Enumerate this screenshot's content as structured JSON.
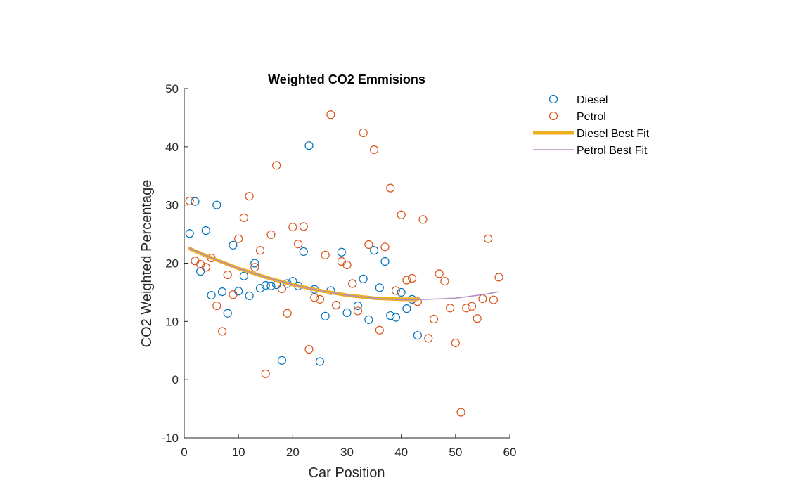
{
  "chart_data": {
    "type": "scatter",
    "title": "Weighted CO2 Emmisions",
    "xlabel": "Car Position",
    "ylabel": "CO2 Weighted Percentage",
    "xlim": [
      0,
      60
    ],
    "ylim": [
      -10,
      50
    ],
    "xticks": [
      0,
      10,
      20,
      30,
      40,
      50,
      60
    ],
    "yticks": [
      -10,
      0,
      10,
      20,
      30,
      40,
      50
    ],
    "grid": false,
    "legend_position": "outside-top-right",
    "series": [
      {
        "name": "Diesel",
        "kind": "markers",
        "color": "#0072BD",
        "x": [
          1,
          2,
          3,
          4,
          5,
          6,
          7,
          8,
          9,
          10,
          11,
          12,
          13,
          14,
          15,
          16,
          17,
          18,
          19,
          20,
          21,
          22,
          23,
          24,
          25,
          26,
          27,
          28,
          29,
          30,
          31,
          32,
          33,
          34,
          35,
          36,
          37,
          38,
          39,
          40,
          41,
          42,
          43
        ],
        "y": [
          25.1,
          30.6,
          18.6,
          25.6,
          14.5,
          30.0,
          15.1,
          11.4,
          23.1,
          15.2,
          17.8,
          14.4,
          20.0,
          15.7,
          16.2,
          16.1,
          16.3,
          3.3,
          16.5,
          16.9,
          16.1,
          22.0,
          40.2,
          15.5,
          3.1,
          10.9,
          15.3,
          12.8,
          21.9,
          11.5,
          16.5,
          12.7,
          17.3,
          10.3,
          22.2,
          15.8,
          20.3,
          11.0,
          10.7,
          15.0,
          12.2,
          13.8,
          7.6
        ]
      },
      {
        "name": "Petrol",
        "kind": "markers",
        "color": "#D95319",
        "x": [
          1,
          2,
          3,
          4,
          5,
          6,
          7,
          8,
          9,
          10,
          11,
          12,
          13,
          14,
          15,
          16,
          17,
          18,
          19,
          20,
          21,
          22,
          23,
          24,
          25,
          26,
          27,
          28,
          29,
          30,
          31,
          32,
          33,
          34,
          35,
          36,
          37,
          38,
          39,
          40,
          41,
          42,
          43,
          44,
          45,
          46,
          47,
          48,
          49,
          50,
          51,
          52,
          53,
          54,
          55,
          56,
          57,
          58
        ],
        "y": [
          30.7,
          20.4,
          19.8,
          19.3,
          20.9,
          12.7,
          8.3,
          18.0,
          14.6,
          24.2,
          27.8,
          31.5,
          19.3,
          22.2,
          1.0,
          24.9,
          36.8,
          15.6,
          11.4,
          26.2,
          23.3,
          26.3,
          5.2,
          14.1,
          13.8,
          21.4,
          45.5,
          12.8,
          20.3,
          19.7,
          16.5,
          11.8,
          42.4,
          23.2,
          39.5,
          8.5,
          22.8,
          32.9,
          15.3,
          28.3,
          17.1,
          17.4,
          13.4,
          27.5,
          7.1,
          10.4,
          18.2,
          16.9,
          12.3,
          6.3,
          -5.6,
          12.3,
          12.6,
          10.5,
          13.9,
          24.2,
          13.7,
          17.6
        ]
      },
      {
        "name": "Diesel Best Fit",
        "kind": "line",
        "color": "#EDB120",
        "x": [
          1,
          5,
          10,
          15,
          20,
          25,
          30,
          35,
          40,
          43
        ],
        "y": [
          22.5,
          20.9,
          19.1,
          17.6,
          16.3,
          15.3,
          14.5,
          14.0,
          13.8,
          13.8
        ]
      },
      {
        "name": "Petrol Best Fit",
        "kind": "line",
        "color": "#B48CC0",
        "x": [
          1,
          5,
          10,
          15,
          20,
          25,
          30,
          35,
          40,
          45,
          50,
          55,
          58
        ],
        "y": [
          22.6,
          20.9,
          19.1,
          17.6,
          16.3,
          15.3,
          14.5,
          14.0,
          13.7,
          13.8,
          14.0,
          14.6,
          15.1
        ]
      }
    ]
  }
}
